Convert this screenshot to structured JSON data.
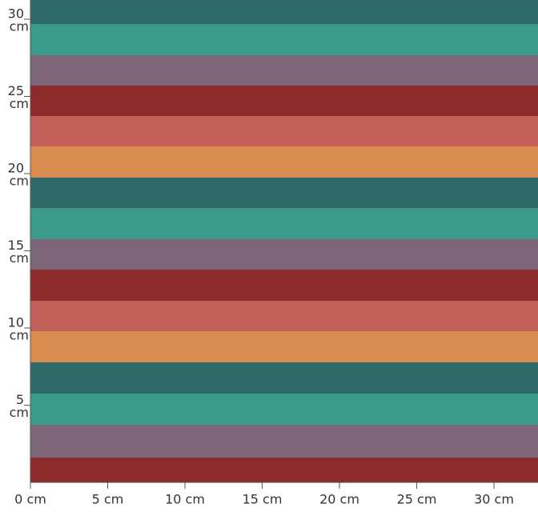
{
  "ruler": {
    "x_labels": [
      "0 cm",
      "5 cm",
      "10 cm",
      "15 cm",
      "20 cm",
      "25 cm",
      "30 cm"
    ],
    "y_labels": [
      {
        "number": "5",
        "unit": "cm"
      },
      {
        "number": "10",
        "unit": "cm"
      },
      {
        "number": "15",
        "unit": "cm"
      },
      {
        "number": "20",
        "unit": "cm"
      },
      {
        "number": "25",
        "unit": "cm"
      },
      {
        "number": "30",
        "unit": "cm"
      }
    ]
  }
}
